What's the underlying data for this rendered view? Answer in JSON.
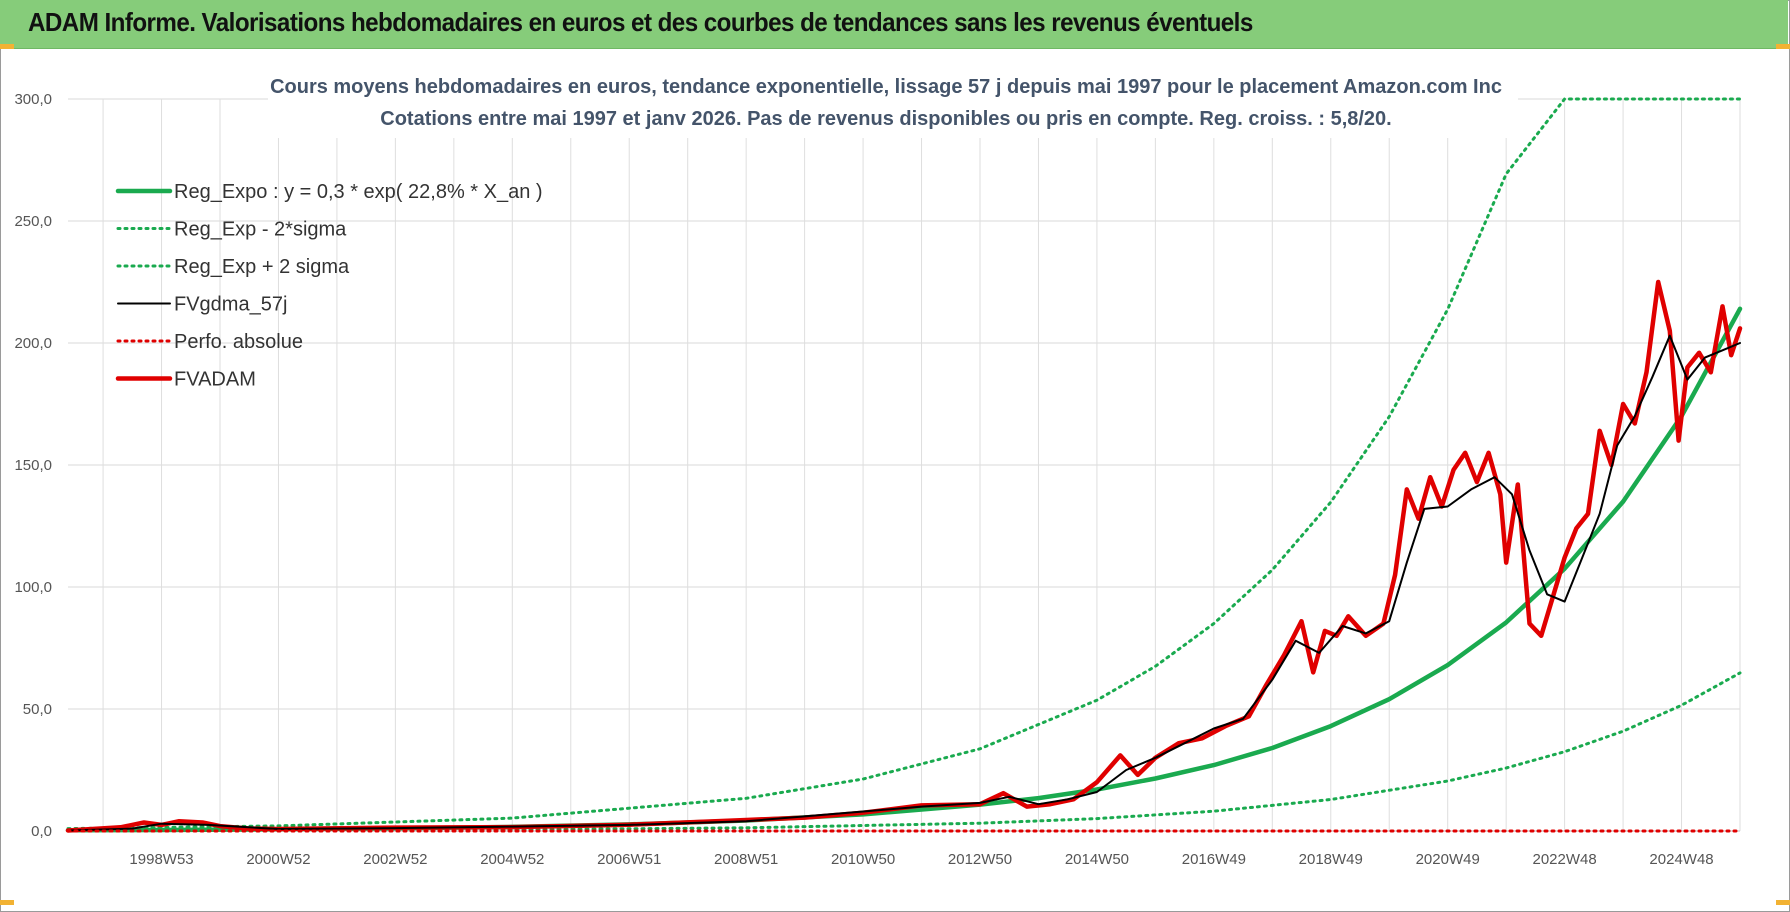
{
  "banner": {
    "title": "ADAM Informe. Valorisations hebdomadaires en euros et des courbes de tendances sans les revenus éventuels"
  },
  "colors": {
    "banner": "#86cc7a",
    "reg_expo": "#1aaa4f",
    "band": "#1aaa4f",
    "fvgdma": "#000000",
    "perfo": "#e00000",
    "fvadam": "#e00000"
  },
  "chart_data": {
    "type": "line",
    "title": "Cours moyens hebdomadaires en euros, tendance exponentielle, lissage 57 j depuis mai 1997 pour le placement Amazon.com Inc",
    "subtitle": "Cotations entre mai 1997 et janv 2026. Pas de revenus disponibles ou pris en compte. Reg. croiss. : 5,8/20.",
    "xlabel": "",
    "ylabel": "",
    "x_range": [
      1997.4,
      2026.0
    ],
    "ylim": [
      0,
      300
    ],
    "y_ticks": [
      0,
      50,
      100,
      150,
      200,
      250,
      300
    ],
    "y_tick_labels": [
      "0,0",
      "50,0",
      "100,0",
      "150,0",
      "200,0",
      "250,0",
      "300,0"
    ],
    "x_ticks": [
      1999,
      2001,
      2003,
      2005,
      2007,
      2009,
      2011,
      2013,
      2015,
      2017,
      2019,
      2021,
      2023,
      2025
    ],
    "x_tick_labels": [
      "1998W53",
      "2000W52",
      "2002W52",
      "2004W52",
      "2006W51",
      "2008W51",
      "2010W50",
      "2012W50",
      "2014W50",
      "2016W49",
      "2018W49",
      "2020W49",
      "2022W48",
      "2024W48"
    ],
    "grid": true,
    "legend_position": "top-left",
    "series": [
      {
        "name": "Reg_Expo : y = 0,3 * exp( 22,8% *  X_an )",
        "style": "solid-thick",
        "color": "#1aaa4f",
        "x": [
          1997.4,
          1999,
          2001,
          2003,
          2005,
          2007,
          2009,
          2011,
          2013,
          2014,
          2015,
          2016,
          2017,
          2018,
          2019,
          2020,
          2021,
          2022,
          2023,
          2024,
          2025,
          2026.0
        ],
        "y": [
          0.3,
          0.43,
          0.68,
          1.1,
          1.7,
          2.7,
          4.3,
          6.8,
          10.8,
          13.5,
          17.0,
          21.5,
          27.0,
          34.0,
          43.0,
          54.0,
          68.0,
          85.5,
          107.5,
          135.0,
          170.0,
          214.0
        ]
      },
      {
        "name": "Reg_Exp - 2*sigma",
        "style": "dotted",
        "color": "#1aaa4f",
        "x": [
          1997.4,
          2001,
          2005,
          2009,
          2013,
          2015,
          2017,
          2019,
          2021,
          2022,
          2023,
          2024,
          2025,
          2026.0
        ],
        "y": [
          0.1,
          0.2,
          0.5,
          1.3,
          3.2,
          5.1,
          8.1,
          12.9,
          20.5,
          25.8,
          32.5,
          40.9,
          51.5,
          64.8
        ]
      },
      {
        "name": "Reg_Exp + 2 sigma",
        "style": "dotted",
        "color": "#1aaa4f",
        "x": [
          1997.4,
          2001,
          2005,
          2009,
          2011,
          2013,
          2015,
          2016,
          2017,
          2018,
          2019,
          2020,
          2021,
          2022,
          2023,
          2024,
          2025,
          2026.0
        ],
        "y": [
          1.0,
          2.1,
          5.3,
          13.4,
          21.3,
          33.7,
          53.6,
          67.5,
          85.0,
          107.0,
          134.8,
          169.8,
          213.8,
          269.3,
          300,
          300,
          300,
          300
        ]
      },
      {
        "name": "FVgdma_57j",
        "style": "solid-thin",
        "color": "#000000",
        "x": [
          1997.4,
          1998.5,
          1999.0,
          1999.8,
          2001,
          2003,
          2005,
          2007,
          2009,
          2010,
          2011,
          2012,
          2013,
          2013.5,
          2014,
          2014.5,
          2015,
          2015.5,
          2016,
          2016.5,
          2017,
          2017.5,
          2018,
          2018.4,
          2018.8,
          2019.2,
          2019.6,
          2020.0,
          2020.3,
          2020.6,
          2021.0,
          2021.4,
          2021.8,
          2022.1,
          2022.4,
          2022.7,
          2023.0,
          2023.3,
          2023.6,
          2023.9,
          2024.2,
          2024.5,
          2024.8,
          2025.1,
          2025.4,
          2025.7,
          2026.0
        ],
        "y": [
          0.2,
          1.0,
          3.0,
          2.5,
          0.8,
          1.2,
          1.8,
          2.5,
          4.0,
          6.0,
          8.0,
          10.0,
          11.5,
          14.0,
          11.0,
          13.0,
          16.0,
          25.0,
          30.0,
          36.0,
          42.0,
          46.0,
          62.0,
          78.0,
          73.0,
          84.0,
          81.0,
          86.0,
          110.0,
          132.0,
          133.0,
          140.0,
          145.0,
          138.0,
          115.0,
          97.0,
          94.0,
          112.0,
          130.0,
          158.0,
          170.0,
          186.0,
          203.0,
          185.0,
          194.0,
          197.0,
          200.0
        ]
      },
      {
        "name": "Perfo. absolue",
        "style": "dotted",
        "color": "#e00000",
        "x": [
          1997.4,
          2026.0
        ],
        "y": [
          0.0,
          0.0
        ]
      },
      {
        "name": "FVADAM",
        "style": "solid-thick",
        "color": "#e00000",
        "x": [
          1997.4,
          1998.3,
          1998.7,
          1999.0,
          1999.3,
          1999.7,
          2000.0,
          2000.5,
          2001,
          2003,
          2005,
          2007,
          2009,
          2010,
          2011,
          2012,
          2013,
          2013.4,
          2013.8,
          2014.2,
          2014.6,
          2015.0,
          2015.4,
          2015.7,
          2016.0,
          2016.4,
          2016.8,
          2017.2,
          2017.6,
          2017.9,
          2018.2,
          2018.5,
          2018.7,
          2018.9,
          2019.1,
          2019.3,
          2019.6,
          2019.9,
          2020.1,
          2020.3,
          2020.5,
          2020.7,
          2020.9,
          2021.1,
          2021.3,
          2021.5,
          2021.7,
          2021.9,
          2022.0,
          2022.2,
          2022.4,
          2022.6,
          2022.8,
          2023.0,
          2023.2,
          2023.4,
          2023.6,
          2023.8,
          2024.0,
          2024.2,
          2024.4,
          2024.6,
          2024.8,
          2024.95,
          2025.1,
          2025.3,
          2025.5,
          2025.7,
          2025.85,
          2026.0
        ],
        "y": [
          0.2,
          1.5,
          3.5,
          2.5,
          4.0,
          3.5,
          2.0,
          1.0,
          0.8,
          1.4,
          1.6,
          2.6,
          4.5,
          5.5,
          7.5,
          10.5,
          11.0,
          15.5,
          10.0,
          11.0,
          13.0,
          20.0,
          31.0,
          23.0,
          30.0,
          36.0,
          38.0,
          43.0,
          47.0,
          60.0,
          72.0,
          86.0,
          65.0,
          82.0,
          80.0,
          88.0,
          80.0,
          85.0,
          105.0,
          140.0,
          128.0,
          145.0,
          133.0,
          148.0,
          155.0,
          143.0,
          155.0,
          138.0,
          110.0,
          142.0,
          85.0,
          80.0,
          96.0,
          112.0,
          124.0,
          130.0,
          164.0,
          150.0,
          175.0,
          167.0,
          188.0,
          225.0,
          205.0,
          160.0,
          190.0,
          196.0,
          188.0,
          215.0,
          195.0,
          206.0
        ]
      }
    ]
  }
}
